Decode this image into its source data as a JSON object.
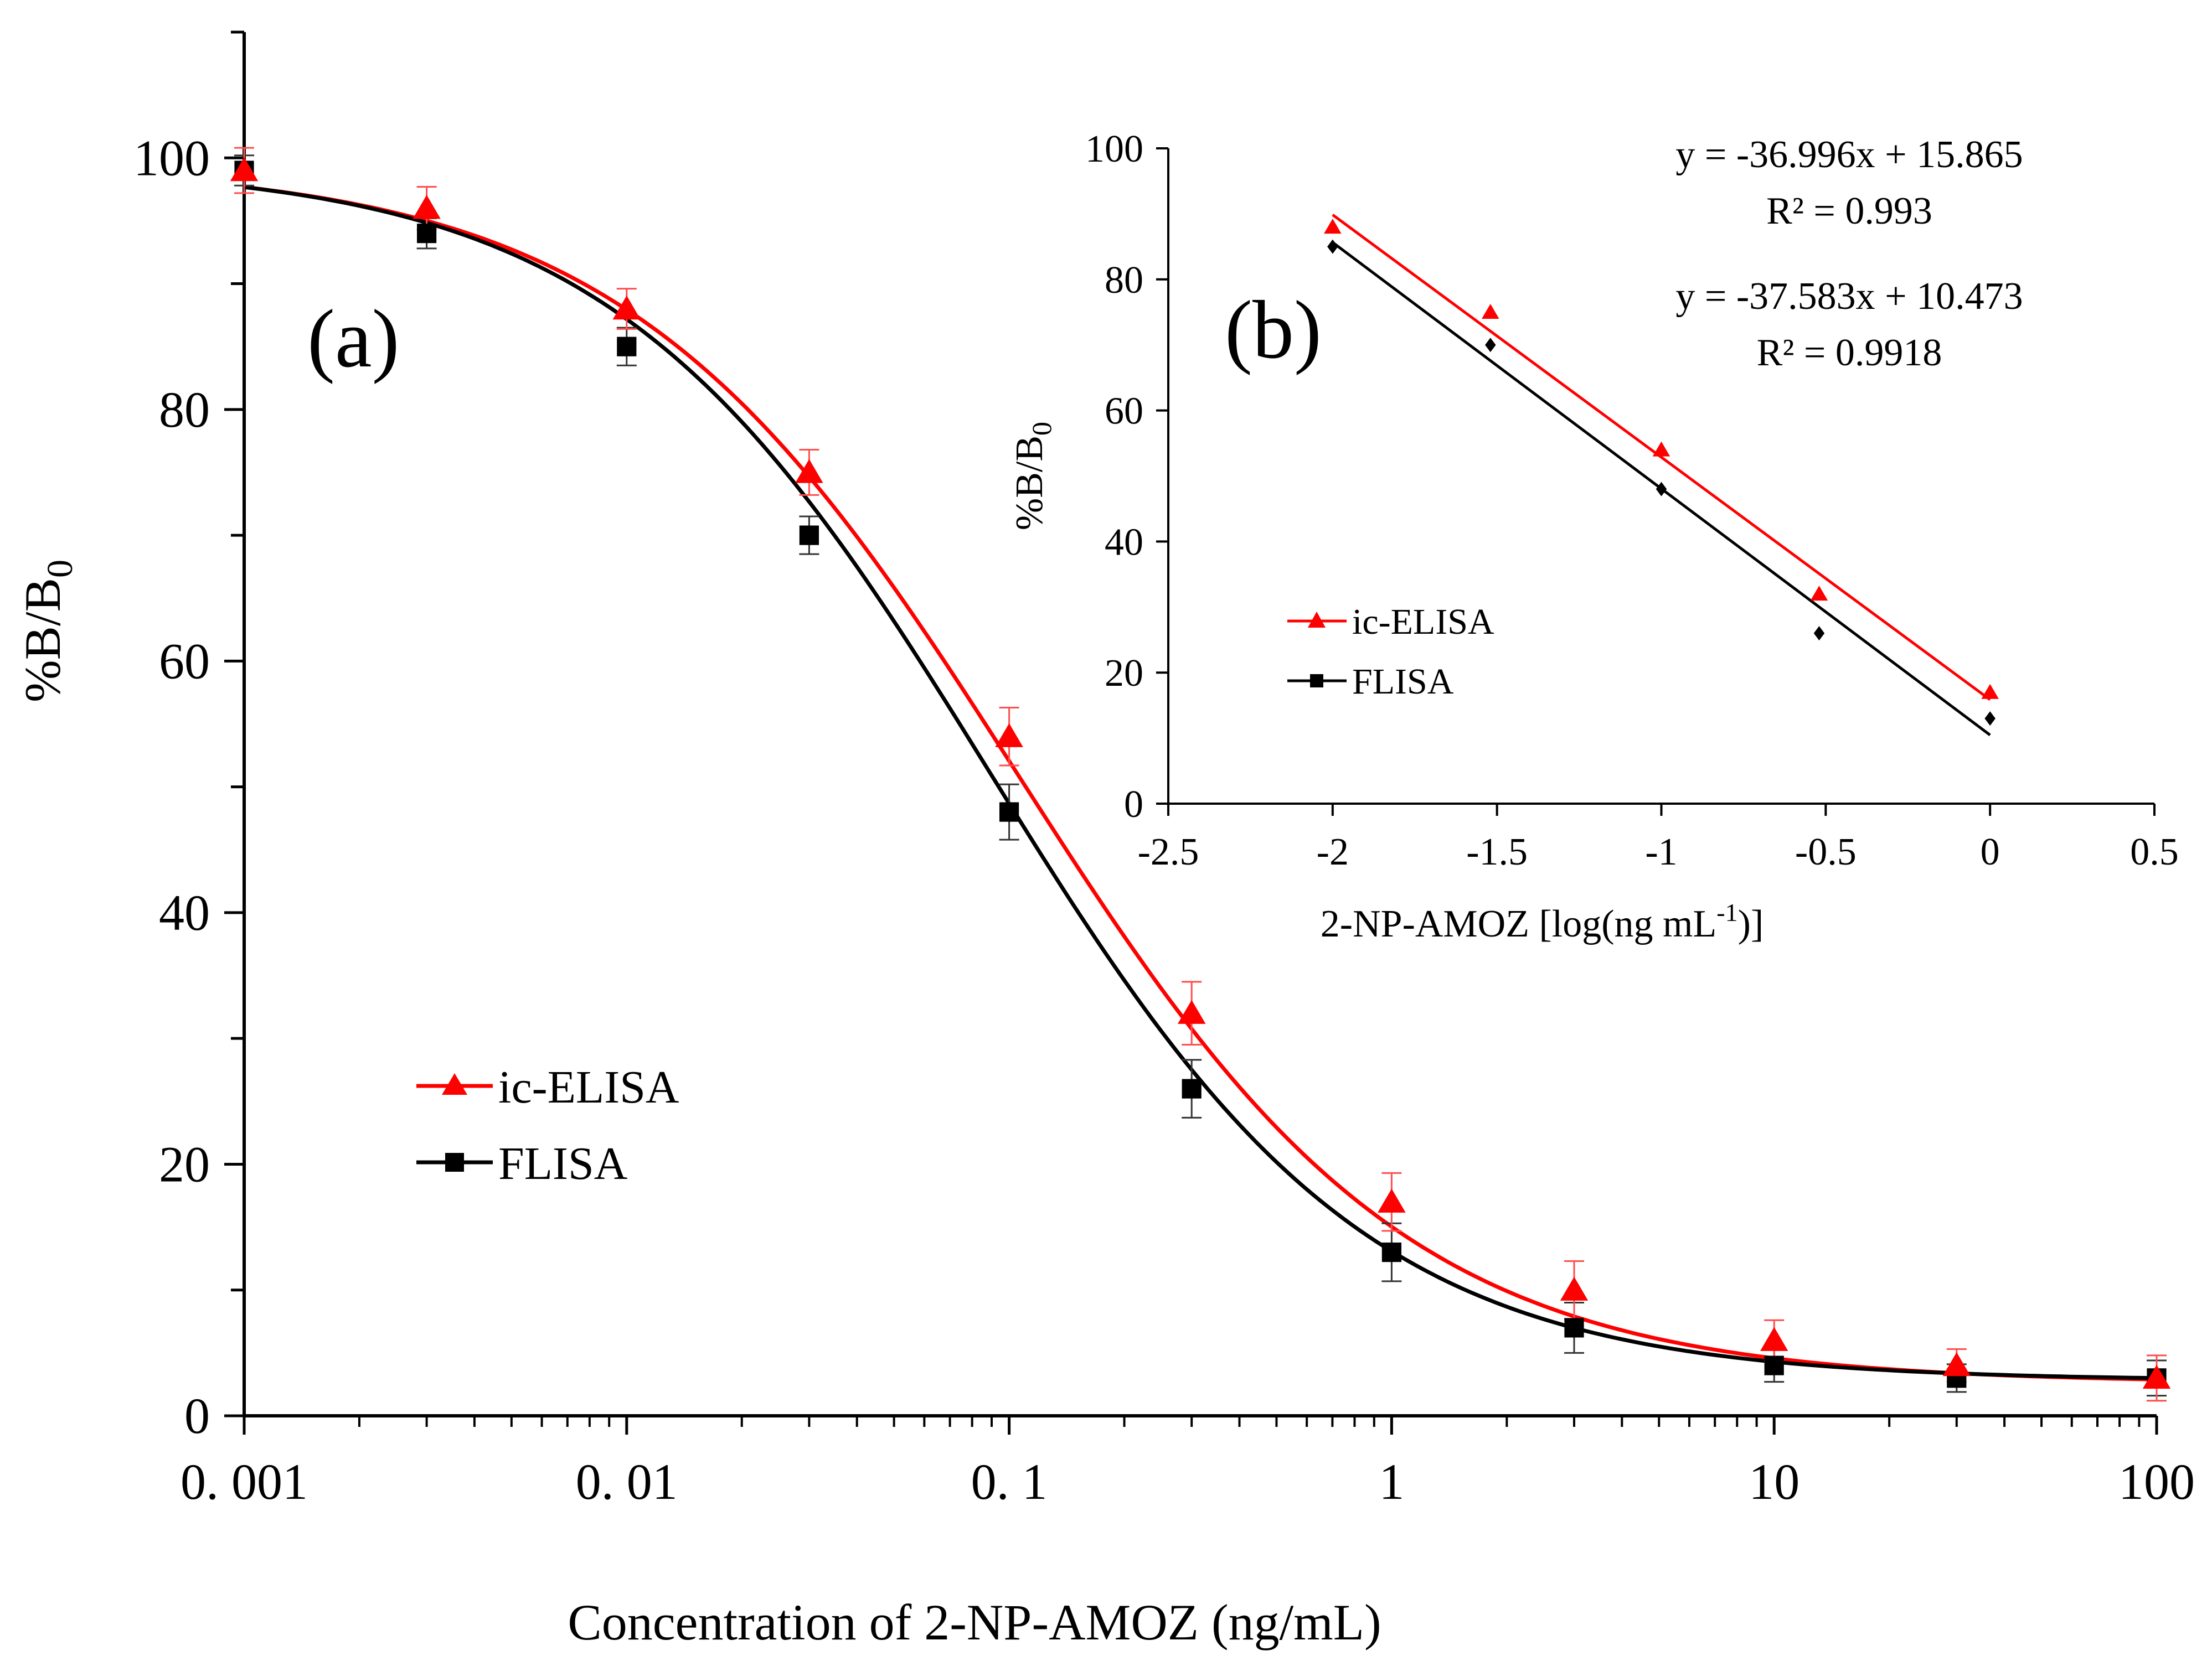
{
  "chart_data": [
    {
      "id": "a",
      "panel_label": "(a)",
      "type": "line",
      "x_scale": "log",
      "xlabel": "Concentration of 2-NP-AMOZ (ng/mL)",
      "ylabel_main": "%B/B",
      "ylabel_sub": "0",
      "xlim": [
        0.001,
        100
      ],
      "ylim": [
        0,
        110
      ],
      "x_ticks": [
        0.001,
        0.01,
        0.1,
        1,
        10,
        100
      ],
      "x_tick_labels": [
        "0. 001",
        "0. 01",
        "0. 1",
        "1",
        "10",
        "100"
      ],
      "y_ticks": [
        0,
        20,
        40,
        60,
        80,
        100
      ],
      "y_tick_labels": [
        "0",
        "20",
        "40",
        "60",
        "80",
        "100"
      ],
      "legend_position": "center-left",
      "series": [
        {
          "name": "ic-ELISA",
          "color": "#ff0000",
          "marker": "triangle",
          "x": [
            0.001,
            0.003,
            0.01,
            0.03,
            0.1,
            0.3,
            1,
            3,
            10,
            30,
            100
          ],
          "y": [
            99,
            96,
            88,
            75,
            54,
            32,
            17,
            10,
            6,
            4,
            3
          ],
          "err": [
            1.8,
            1.7,
            1.6,
            1.8,
            2.3,
            2.5,
            2.3,
            2.3,
            1.6,
            1.3,
            1.8
          ],
          "fit": {
            "top": 99.5,
            "bottom": 2.6,
            "ic50": 0.105,
            "hill": 0.85
          }
        },
        {
          "name": "FLISA",
          "color": "#000000",
          "marker": "square",
          "x": [
            0.001,
            0.003,
            0.01,
            0.03,
            0.1,
            0.3,
            1,
            3,
            10,
            30,
            100
          ],
          "y": [
            99,
            94,
            85,
            70,
            48,
            26,
            13,
            7,
            4,
            3,
            3
          ],
          "err": [
            1.2,
            1.2,
            1.5,
            1.5,
            2.2,
            2.3,
            2.3,
            2.0,
            1.3,
            1.1,
            1.4
          ],
          "fit": {
            "top": 99.5,
            "bottom": 2.8,
            "ic50": 0.089,
            "hill": 0.88
          }
        }
      ]
    },
    {
      "id": "b",
      "panel_label": "(b)",
      "type": "scatter",
      "xlabel_main": "2-NP-AMOZ [log(ng mL",
      "xlabel_sup": "-1",
      "xlabel_end": ")]",
      "ylabel_main": "%B/B",
      "ylabel_sub": "0",
      "xlim": [
        -2.5,
        0.5
      ],
      "ylim": [
        0,
        100
      ],
      "x_ticks": [
        -2.5,
        -2,
        -1.5,
        -1,
        -0.5,
        0,
        0.5
      ],
      "x_tick_labels": [
        "-2.5",
        "-2",
        "-1.5",
        "-1",
        "-0.5",
        "0",
        "0.5"
      ],
      "y_ticks": [
        0,
        20,
        40,
        60,
        80,
        100
      ],
      "y_tick_labels": [
        "0",
        "20",
        "40",
        "60",
        "80",
        "100"
      ],
      "legend_position": "center-left",
      "series": [
        {
          "name": "ic-ELISA",
          "color": "#ff0000",
          "marker": "triangle",
          "x": [
            -2,
            -1.52,
            -1,
            -0.52,
            0
          ],
          "y": [
            88,
            75,
            54,
            32,
            17
          ],
          "trend": {
            "slope": -36.996,
            "intercept": 15.865,
            "x_range": [
              -2,
              0
            ]
          },
          "equation": "y = -36.996x + 15.865",
          "r2": "R² = 0.993"
        },
        {
          "name": "FLISA",
          "color": "#000000",
          "marker": "diamond",
          "x": [
            -2,
            -1.52,
            -1,
            -0.52,
            0
          ],
          "y": [
            85,
            70,
            48,
            26,
            13
          ],
          "trend": {
            "slope": -37.583,
            "intercept": 10.473,
            "x_range": [
              -2,
              0
            ]
          },
          "equation": "y = -37.583x + 10.473",
          "r2": "R² = 0.9918"
        }
      ]
    }
  ]
}
